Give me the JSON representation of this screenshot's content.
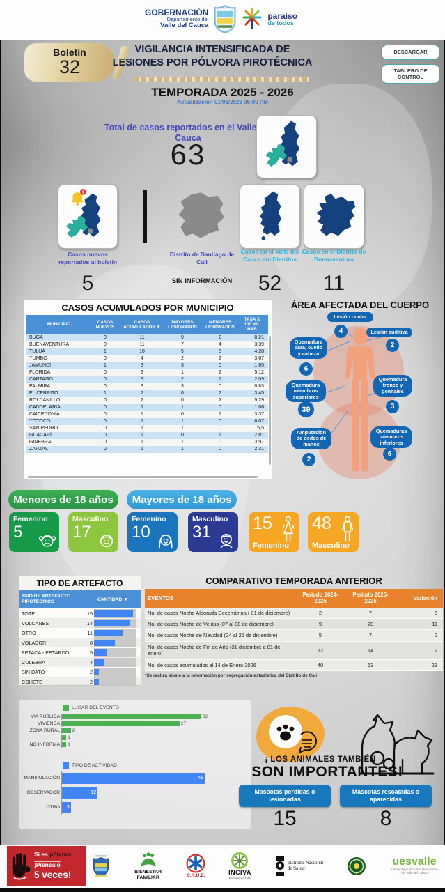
{
  "header": {
    "gob_title": "GOBERNACIÓN",
    "gob_sub": "Departamento del",
    "gob_dept": "Valle del Cauca",
    "paraiso1": "paraíso",
    "paraiso2": "de todos",
    "boletin_label": "Boletín",
    "boletin_number": "32",
    "title1": "VIGILANCIA INTENSIFICADA DE",
    "title2": "LESIONES POR PÓLVORA PIROTÉCNICA",
    "btn_descargar": "DESCARGAR",
    "btn_tablero": "TABLERO DE CONTROL",
    "temporada": "TEMPORADA 2025 - 2026",
    "actualizacion": "Actualización 01/01/2026 06:00 PM"
  },
  "total": {
    "label": "Total de casos reportados en el Valle del Cauca",
    "value": "63"
  },
  "summary_cards": [
    {
      "label": "Casos nuevos reportados al boletín",
      "value": "5",
      "badge": "1"
    },
    {
      "label": "Distrito de Santiago de Cali",
      "value": "SIN INFORMACIÓN"
    },
    {
      "label": "Casos en el Valle del Cauca sin Distritos",
      "value": "52"
    },
    {
      "label": "Casos en el Distrito de Buenaventura",
      "value": "11"
    }
  ],
  "municipio_table": {
    "title": "CASOS ACUMULADOS POR  MUNICIPIO",
    "columns": [
      "MUNICIPIO",
      "CASOS NUEVOS",
      "CASOS ACUMULADOS ▼",
      "MAYORES LESIONADOS",
      "MENORES LESIONADOS",
      "TASA X 100 MIL HAB"
    ],
    "rows": [
      [
        "BUGA",
        "0",
        "11",
        "9",
        "2",
        "8,21"
      ],
      [
        "BUENAVENTURA",
        "0",
        "11",
        "7",
        "4",
        "3,39"
      ],
      [
        "TULUÁ",
        "1",
        "10",
        "5",
        "5",
        "4,28"
      ],
      [
        "YUMBO",
        "0",
        "4",
        "2",
        "2",
        "3,67"
      ],
      [
        "JAMUNDÍ",
        "1",
        "3",
        "3",
        "0",
        "1,65"
      ],
      [
        "FLORIDA",
        "0",
        "3",
        "1",
        "2",
        "5,12"
      ],
      [
        "CARTAGO",
        "0",
        "3",
        "2",
        "1",
        "2,09"
      ],
      [
        "PALMIRA",
        "0",
        "3",
        "3",
        "0",
        "0,83"
      ],
      [
        "EL CERRITO",
        "1",
        "2",
        "0",
        "2",
        "3,45"
      ],
      [
        "ROLDANILLO",
        "0",
        "2",
        "0",
        "2",
        "5,29"
      ],
      [
        "CANDELARIA",
        "0",
        "1",
        "1",
        "0",
        "1,06"
      ],
      [
        "CAICEDONIA",
        "0",
        "1",
        "0",
        "1",
        "3,37"
      ],
      [
        "YOTOCO",
        "0",
        "1",
        "1",
        "0",
        "6,07"
      ],
      [
        "SAN PEDRO",
        "0",
        "1",
        "1",
        "0",
        "5,5"
      ],
      [
        "GUACARÍ",
        "0",
        "1",
        "0",
        "1",
        "2,81"
      ],
      [
        "GINEBRA",
        "0",
        "1",
        "1",
        "0",
        "3,97"
      ],
      [
        "ZARZAL",
        "0",
        "1",
        "1",
        "0",
        "2,31"
      ]
    ]
  },
  "body_areas": {
    "title": "ÁREA AFECTADA DEL CUERPO",
    "ocular": {
      "label": "Lesión ocular",
      "value": "4"
    },
    "auditiva": {
      "label": "Lesión auditiva",
      "value": "2"
    },
    "cara": {
      "label": "Quemadura cara, cuello y cabeza",
      "value": "6"
    },
    "superiores": {
      "label": "Quemadura miembros superiores",
      "value": "39"
    },
    "tronco": {
      "label": "Quemadura tronco y genitales",
      "value": "3"
    },
    "amputacion": {
      "label": "Amputación de dedos de manos",
      "value": "2"
    },
    "inferiores": {
      "label": "Quemaduras miembros inferiores",
      "value": "6"
    }
  },
  "demographics": {
    "minors_header": "Menores de 18 años",
    "adults_header": "Mayores de 18 años",
    "minors_female": {
      "label": "Femenino",
      "value": "5"
    },
    "minors_male": {
      "label": "Masculino",
      "value": "17"
    },
    "adults_female": {
      "label": "Femenino",
      "value": "10"
    },
    "adults_male": {
      "label": "Masculino",
      "value": "31"
    },
    "total_female": {
      "label": "Femenino",
      "value": "15"
    },
    "total_male": {
      "label": "Masculino",
      "value": "48"
    }
  },
  "artefacto_table": {
    "title": "TIPO DE ARTEFACTO",
    "col_tipo": "TIPO DE ARTEFACTO PIROTÉCNICO",
    "col_cantidad": "CANTIDAD ▼",
    "max": 15,
    "rows": [
      [
        "TOTE",
        15
      ],
      [
        "VOLCANES",
        14
      ],
      [
        "OTRO",
        11
      ],
      [
        "VOLADOR",
        8
      ],
      [
        "PETACA - PETARDO",
        5
      ],
      [
        "CULEBRA",
        4
      ],
      [
        "SIN DATO",
        2
      ],
      [
        "COHETE",
        2
      ]
    ]
  },
  "comparativo_table": {
    "title": "COMPARATIVO TEMPORADA ANTERIOR",
    "columns": [
      "EVENTOS",
      "Periodo 2024-2025",
      "Periodo 2025-2026",
      "Variación"
    ],
    "rows": [
      [
        "No. de casos Noche Alborada Decembrina ( 01 de diciembre)",
        "2",
        "7",
        "5"
      ],
      [
        "No. de casos Noche de Velitas (07 al 08 de diciembre)",
        "9",
        "20",
        "11"
      ],
      [
        "No. de casos Noche de Navidad (24 al 25 de diciembre)",
        "5",
        "7",
        "2"
      ],
      [
        "No. de casos Noche de Fin de Año (31 diciembre a 01 de enero)",
        "12",
        "14",
        "2"
      ],
      [
        "No. de casos acumulados al 14 de Enero 2026",
        "40",
        "63",
        "23"
      ]
    ],
    "footnote": "*Se realiza ajuste a la información por segregación estadística del Distrito de Cali"
  },
  "lugar_chart": {
    "type": "bar",
    "legend": "LUGAR DEL EVENTO",
    "categories": [
      "VIA PUBLICA",
      "VIVIENDA",
      "ZONA RURAL",
      "",
      "NO INFORMA"
    ],
    "values": [
      32,
      27,
      2,
      1,
      1
    ],
    "max": 32
  },
  "actividad_chart": {
    "type": "bar",
    "legend": "TIPO DE ACTIVIDAD",
    "categories": [
      "MANIPULACIÓN",
      "OBSERVADOR",
      "OTRO"
    ],
    "values": [
      48,
      12,
      3
    ],
    "max": 48
  },
  "animals": {
    "title1": "¡ LOS ANIMALES TAMBIÉN",
    "title2": "SON IMPORTANTES!",
    "lost_label": "Mascotas perdidas o lesionadas",
    "lost_value": "15",
    "rescued_label": "Mascotas rescatadas o aparecidas",
    "rescued_value": "8"
  },
  "footer": {
    "campaign1": "Si es",
    "campaign1b": "pólvora...",
    "campaign2": "¡Piénsalo",
    "campaign3": "5 veces!",
    "logos": {
      "bienestar": "BIENESTAR FAMILIAR",
      "crue": "C.R.U.E.",
      "inciva": "INCIVA",
      "inciva_sub": "Patrimonio Vital",
      "ins": "Instituto Nacional de Salud",
      "uesvalle": "uesvalle",
      "uesvalle_sub": "Unidad Ejecutora de Saneamiento del Valle del Cauca"
    }
  }
}
